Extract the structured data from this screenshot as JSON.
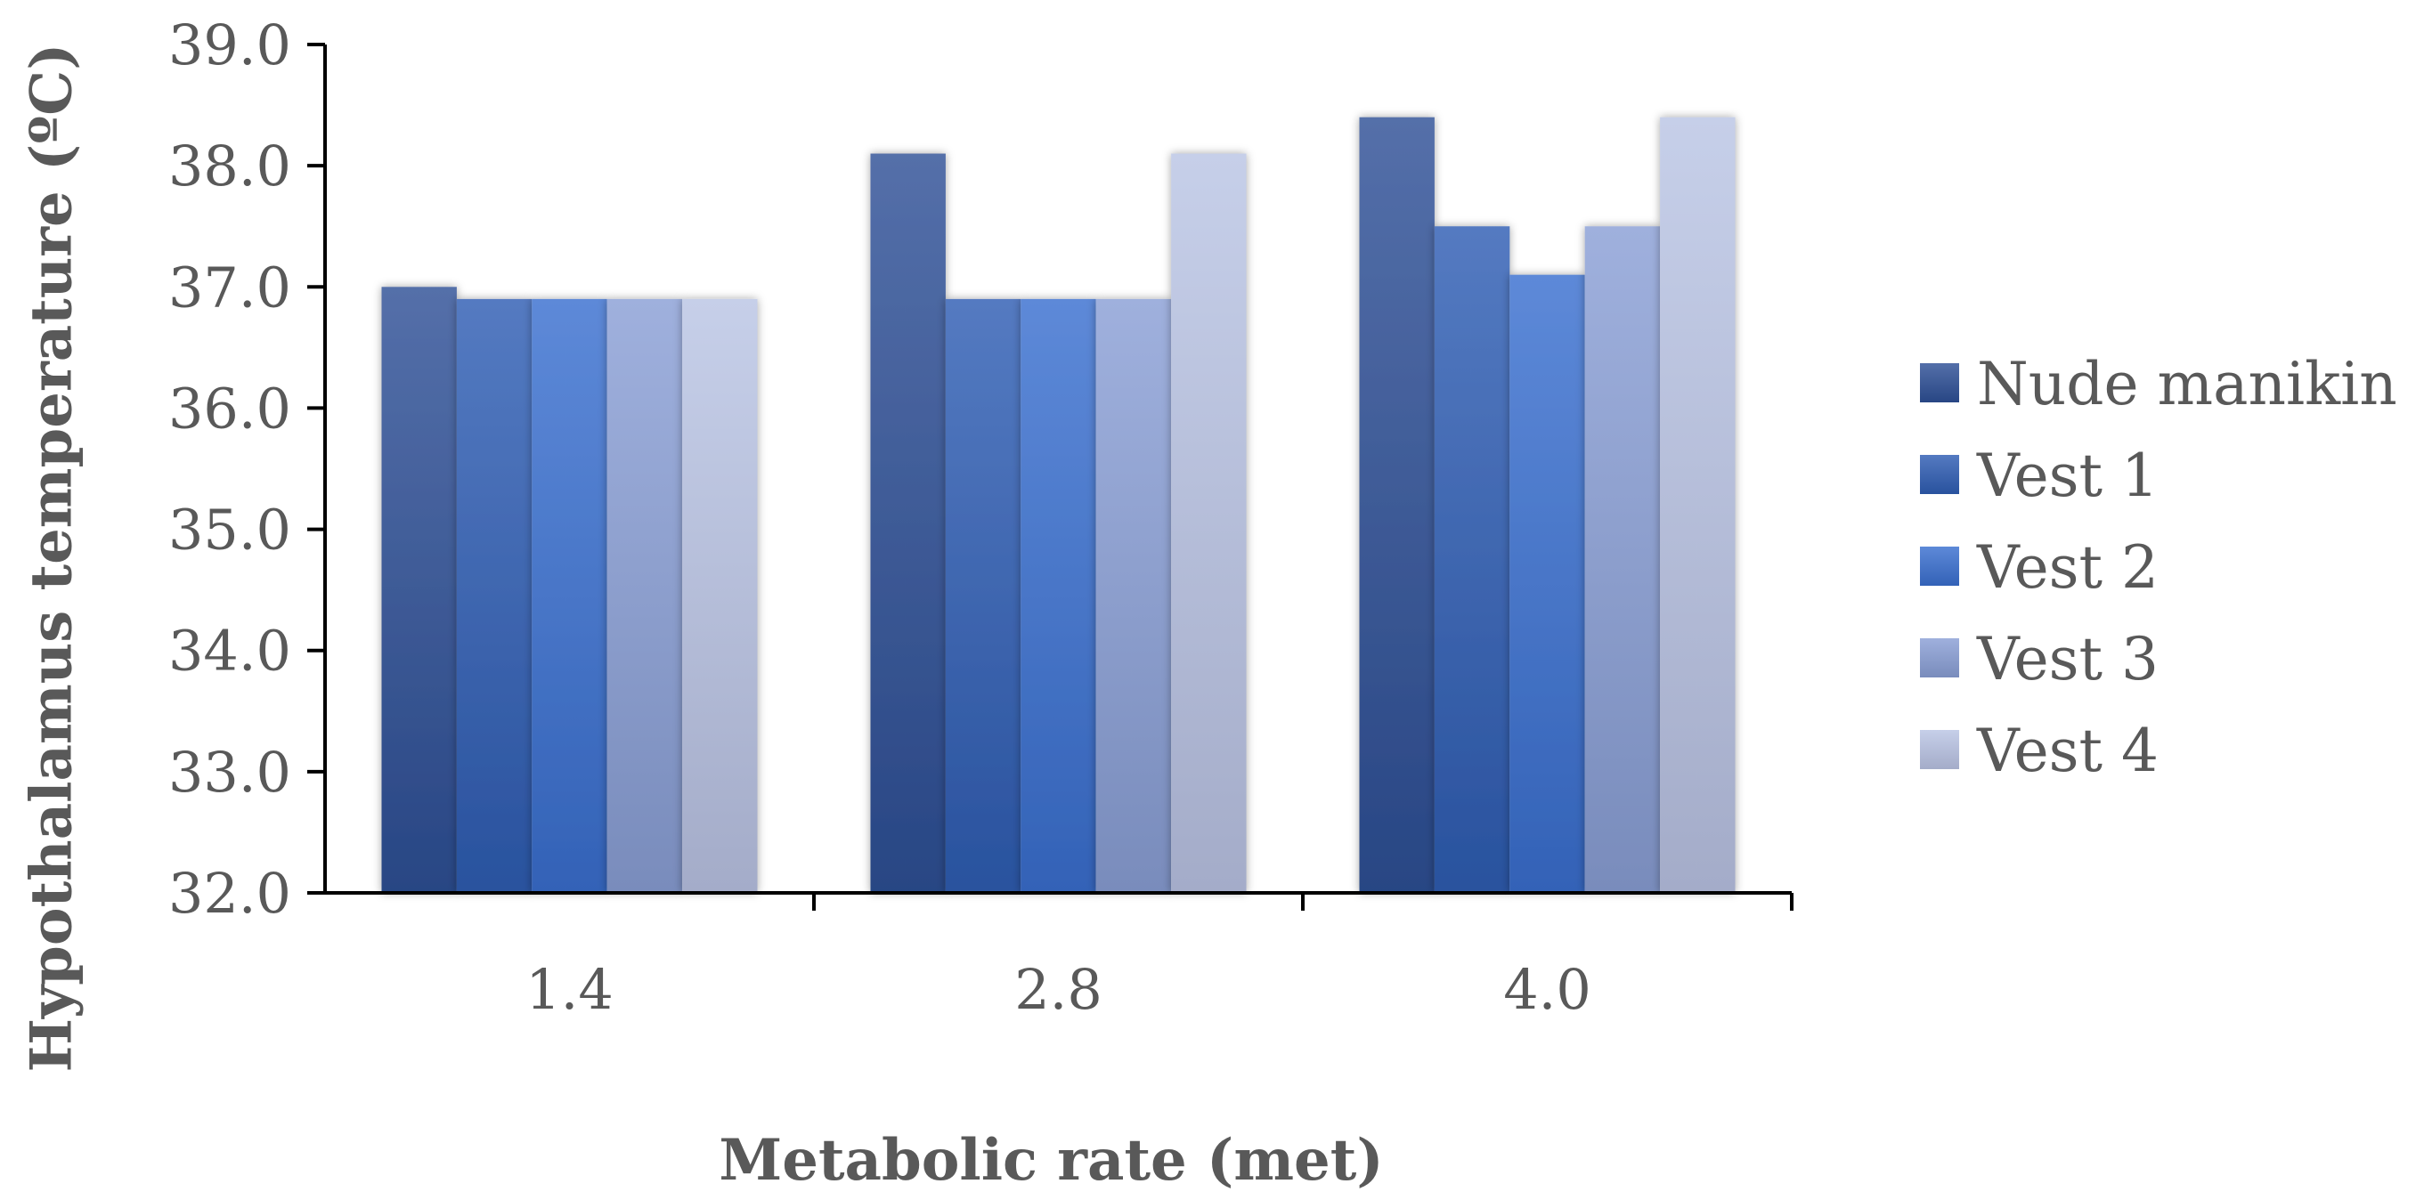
{
  "chart_data": {
    "type": "bar",
    "title": "",
    "xlabel": "Metabolic rate (met)",
    "ylabel": "Hypothalamus temperature (ºC)",
    "categories": [
      "1.4",
      "2.8",
      "4.0"
    ],
    "ylim": [
      32.0,
      39.0
    ],
    "yticks": [
      "32.0",
      "33.0",
      "34.0",
      "35.0",
      "36.0",
      "37.0",
      "38.0",
      "39.0"
    ],
    "grid": false,
    "legend_position": "right",
    "series": [
      {
        "name": "Nude manikin",
        "values": [
          37.0,
          38.1,
          38.4
        ],
        "color": "#2E4F96"
      },
      {
        "name": "Vest 1",
        "values": [
          36.9,
          36.9,
          37.5
        ],
        "color": "#2F5DB3"
      },
      {
        "name": "Vest 2",
        "values": [
          36.9,
          36.9,
          37.1
        ],
        "color": "#3A6FD0"
      },
      {
        "name": "Vest 3",
        "values": [
          36.9,
          36.9,
          37.5
        ],
        "color": "#8A9FD6"
      },
      {
        "name": "Vest 4",
        "values": [
          36.9,
          38.1,
          38.4
        ],
        "color": "#BAC4E4"
      }
    ]
  }
}
